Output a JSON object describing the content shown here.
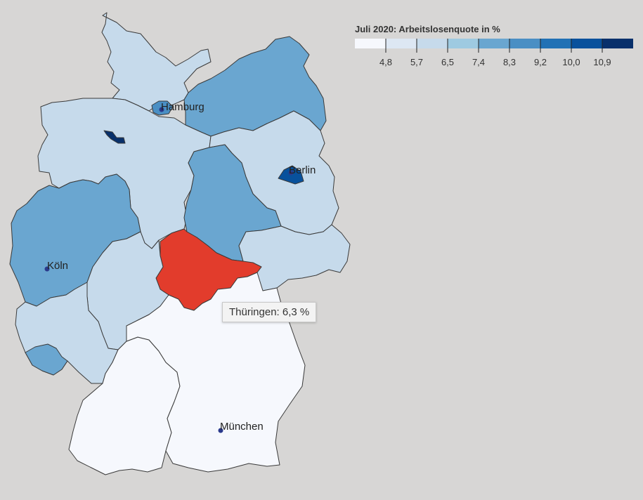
{
  "map": {
    "legend": {
      "title": "Juli 2020: Arbeitslosenquote in %",
      "colors": [
        "#f6f8fd",
        "#dde7f3",
        "#c6daeb",
        "#9ecae1",
        "#6aa6d0",
        "#4a8fc4",
        "#2171b5",
        "#08519c",
        "#08306b"
      ],
      "ticks": [
        "4,8",
        "5,7",
        "6,5",
        "7,4",
        "8,3",
        "9,2",
        "10,0",
        "10,9"
      ]
    },
    "regions": [
      {
        "id": "schleswig-holstein",
        "fill": "#c6daeb"
      },
      {
        "id": "hamburg",
        "fill": "#4a8fc4"
      },
      {
        "id": "mecklenburg-vorpommern",
        "fill": "#6aa6d0"
      },
      {
        "id": "niedersachsen",
        "fill": "#c6daeb"
      },
      {
        "id": "bremen",
        "fill": "#08306b"
      },
      {
        "id": "brandenburg",
        "fill": "#c6daeb"
      },
      {
        "id": "berlin",
        "fill": "#08519c"
      },
      {
        "id": "sachsen-anhalt",
        "fill": "#6aa6d0"
      },
      {
        "id": "nordrhein-westfalen",
        "fill": "#6aa6d0"
      },
      {
        "id": "hessen",
        "fill": "#c6daeb"
      },
      {
        "id": "thueringen",
        "fill": "#e23c2c"
      },
      {
        "id": "sachsen",
        "fill": "#c6daeb"
      },
      {
        "id": "rheinland-pfalz",
        "fill": "#c6daeb"
      },
      {
        "id": "saarland",
        "fill": "#6aa6d0"
      },
      {
        "id": "baden-wuerttemberg",
        "fill": "#f6f8fd"
      },
      {
        "id": "bayern",
        "fill": "#f6f8fd"
      }
    ],
    "cities": {
      "hamburg": "Hamburg",
      "berlin": "Berlin",
      "koeln": "Köln",
      "muenchen": "München"
    },
    "tooltip": "Thüringen: 6,3 %"
  }
}
